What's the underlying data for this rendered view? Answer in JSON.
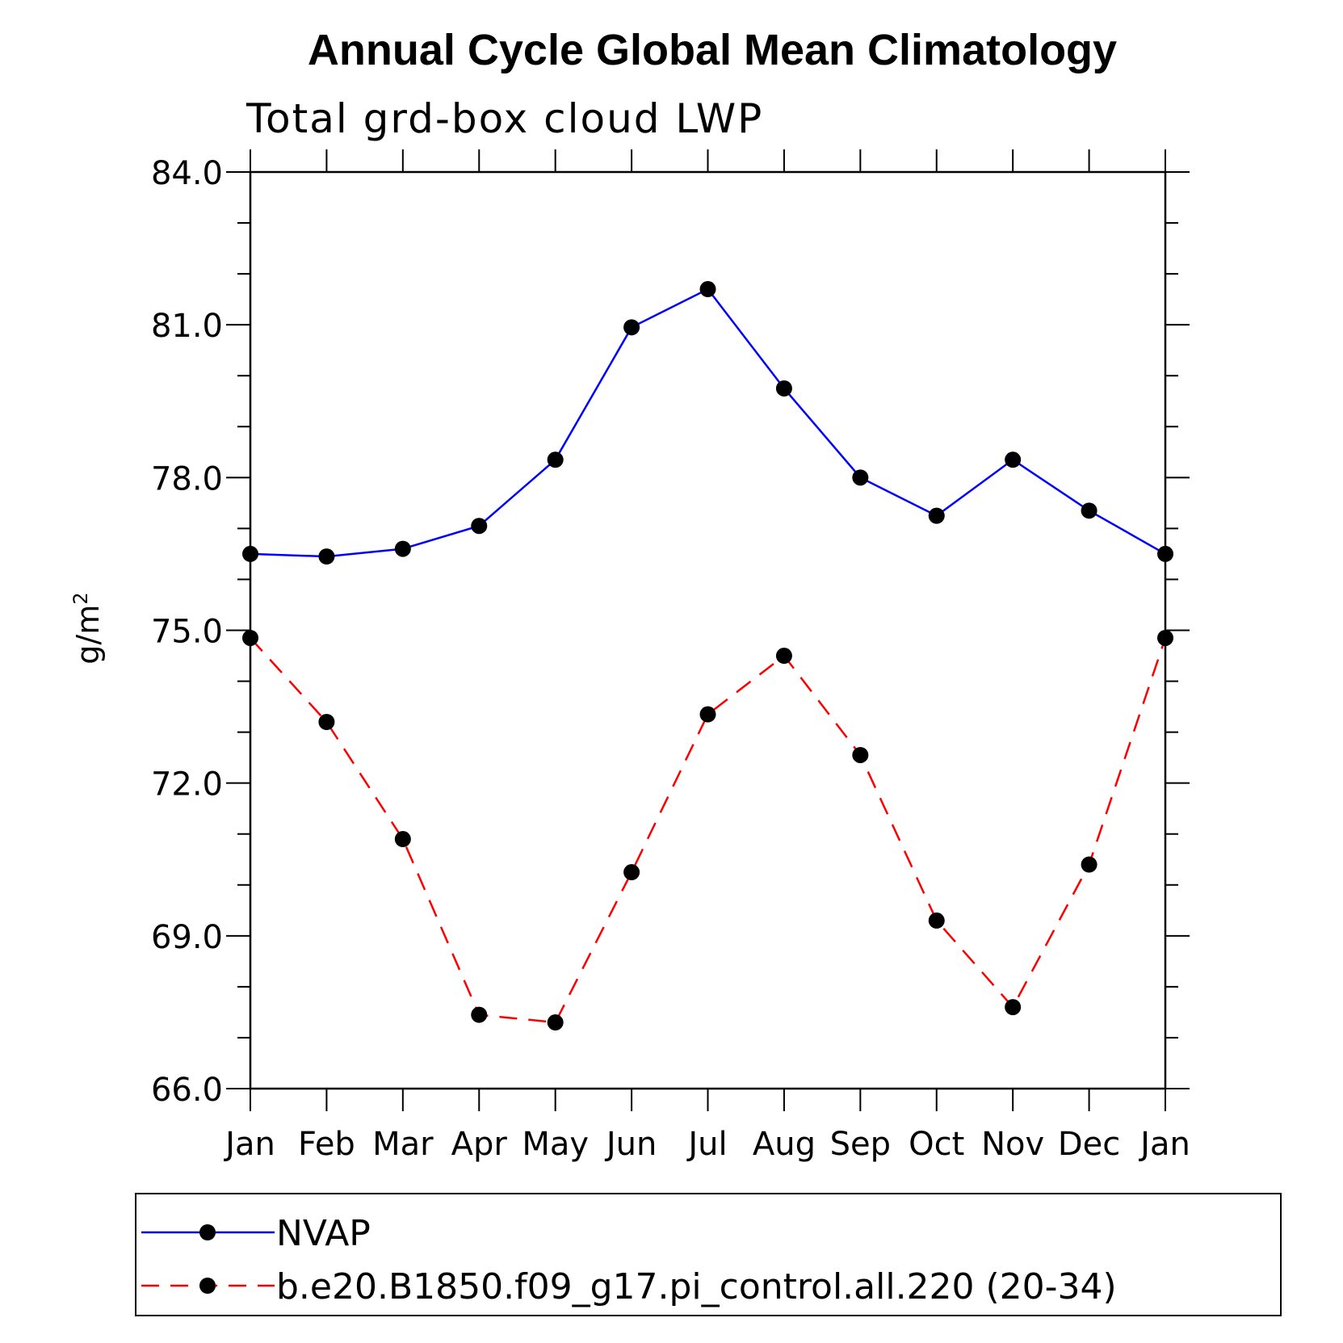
{
  "chart_data": {
    "type": "line",
    "title": "Annual Cycle Global Mean Climatology",
    "subtitle": "Total grd-box cloud LWP",
    "ylabel": "g/m",
    "ylabel_superscript": "2",
    "xlabel": "",
    "categories": [
      "Jan",
      "Feb",
      "Mar",
      "Apr",
      "May",
      "Jun",
      "Jul",
      "Aug",
      "Sep",
      "Oct",
      "Nov",
      "Dec",
      "Jan"
    ],
    "ylim": [
      66.0,
      84.0
    ],
    "yticks": [
      "66.0",
      "69.0",
      "72.0",
      "75.0",
      "78.0",
      "81.0",
      "84.0"
    ],
    "ytick_values": [
      66,
      69,
      72,
      75,
      78,
      81,
      84
    ],
    "series": [
      {
        "name": "NVAP",
        "color": "#0000ff",
        "dash": "solid",
        "values": [
          76.5,
          76.45,
          76.6,
          77.05,
          78.35,
          80.95,
          81.7,
          79.75,
          78.0,
          77.25,
          78.35,
          77.35,
          76.5
        ]
      },
      {
        "name": "b.e20.B1850.f09_g17.pi_control.all.220 (20-34)",
        "color": "#ff0000",
        "dash": "dashed",
        "values": [
          74.85,
          73.2,
          70.9,
          67.45,
          67.3,
          70.25,
          73.35,
          74.5,
          72.55,
          69.3,
          67.6,
          70.4,
          74.85
        ]
      }
    ],
    "marker_color": "#000000",
    "legend_position": "bottom"
  }
}
